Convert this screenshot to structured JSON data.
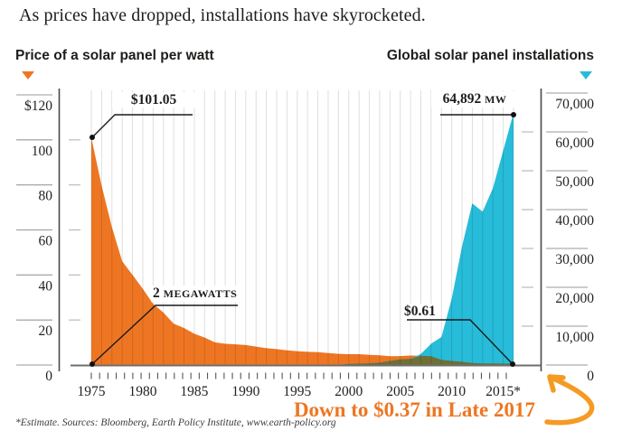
{
  "header": {
    "title": "As prices have dropped, installations have skyrocketed.",
    "left_series_label": "Price of a solar panel per watt",
    "right_series_label": "Global solar panel installations"
  },
  "colors": {
    "price_area": "#ee7623",
    "installations_area": "#27bcd9",
    "overlap_area": "#6e7036",
    "note_text": "#ee7623",
    "hand_arrow": "#f59b23",
    "gridline": "#d9d9d9",
    "axis_line": "#4a4a4a",
    "annotation_line": "#1a1a1a"
  },
  "chart_data": {
    "type": "area",
    "title": "As prices have dropped, installations have skyrocketed.",
    "x": [
      1975,
      1976,
      1977,
      1978,
      1979,
      1980,
      1981,
      1982,
      1983,
      1984,
      1985,
      1986,
      1987,
      1988,
      1989,
      1990,
      1991,
      1992,
      1993,
      1994,
      1995,
      1996,
      1997,
      1998,
      1999,
      2000,
      2001,
      2002,
      2003,
      2004,
      2005,
      2006,
      2007,
      2008,
      2009,
      2010,
      2011,
      2012,
      2013,
      2014,
      2015,
      2016
    ],
    "series": [
      {
        "name": "Price of a solar panel per watt ($ per watt)",
        "axis": "left",
        "color": "#ee7623",
        "values": [
          101.05,
          79.67,
          61.21,
          46.08,
          40.02,
          33.83,
          27.18,
          23.3,
          18.36,
          16.44,
          13.87,
          12.21,
          10.06,
          9.45,
          9.18,
          8.86,
          8.2,
          7.46,
          7.05,
          6.55,
          6.12,
          5.85,
          5.68,
          5.34,
          4.98,
          4.82,
          4.82,
          4.5,
          4.33,
          3.89,
          3.99,
          4.2,
          4.15,
          3.94,
          2.31,
          1.81,
          1.46,
          0.94,
          0.72,
          0.7,
          0.63,
          0.61
        ]
      },
      {
        "name": "Global solar panel installations (MW)",
        "axis": "right",
        "color": "#27bcd9",
        "values": [
          2,
          2,
          3,
          4,
          5,
          7,
          8,
          9,
          12,
          15,
          17,
          19,
          21,
          23,
          26,
          29,
          33,
          37,
          42,
          47,
          52,
          57,
          63,
          69,
          76,
          288,
          345,
          439,
          594,
          1052,
          1460,
          1580,
          2826,
          5500,
          7208,
          17151,
          30500,
          41600,
          39500,
          45500,
          55200,
          64892
        ]
      }
    ],
    "left_axis": {
      "tick_labels": [
        "$120",
        "100",
        "80",
        "60",
        "40",
        "20",
        "0"
      ],
      "tick_values": [
        120,
        100,
        80,
        60,
        40,
        20,
        0
      ],
      "range": [
        0,
        120
      ]
    },
    "right_axis": {
      "tick_labels": [
        "70,000",
        "60,000",
        "50,000",
        "40,000",
        "30,000",
        "20,000",
        "10,000",
        "0"
      ],
      "tick_values": [
        70000,
        60000,
        50000,
        40000,
        30000,
        20000,
        10000,
        0
      ],
      "range": [
        0,
        70000
      ]
    },
    "x_axis": {
      "labels": [
        "1975",
        "1980",
        "1985",
        "1990",
        "1995",
        "2000",
        "2005",
        "2010",
        "2015*"
      ],
      "label_years": [
        1975,
        1980,
        1985,
        1990,
        1995,
        2000,
        2005,
        2010,
        2015
      ]
    },
    "grid": "vertical-per-year",
    "legend_position": "top"
  },
  "annotations": {
    "price_start": {
      "text": "$101.05"
    },
    "installations_peak": {
      "value": "64,892 ",
      "unit": "MW"
    },
    "installations_start": {
      "value": "2 ",
      "unit": "MEGAWATTS"
    },
    "price_end": {
      "text": "$0.61"
    }
  },
  "note": {
    "text": "Down to $0.37 in Late 2017"
  },
  "footnote": {
    "text": "*Estimate. Sources: Bloomberg, Earth Policy Institute, www.earth-policy.org"
  }
}
